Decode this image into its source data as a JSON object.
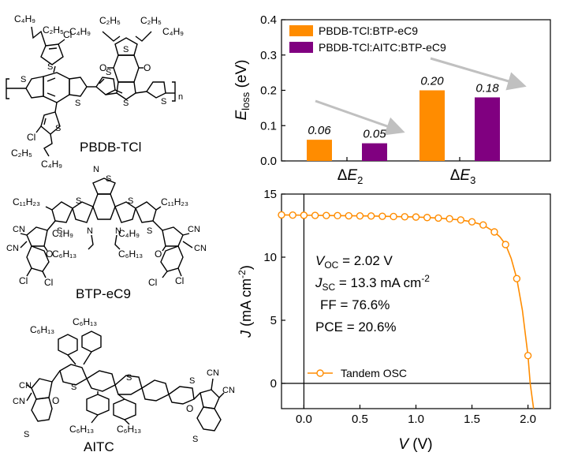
{
  "molecules": {
    "pbdb_label": "PBDB-TCl",
    "btp_label": "BTP-eC9",
    "aitc_label": "AITC",
    "subst": {
      "c4h9": "C₄H₉",
      "c2h5": "C₂H₅",
      "c11h23": "C₁₁H₂₃",
      "c6h13": "C₆H₁₃",
      "cl": "Cl",
      "cn": "CN",
      "s": "S",
      "o": "O",
      "n": "N",
      "n_rep": "n"
    }
  },
  "colors": {
    "orange": "#ff8c00",
    "purple": "#800080",
    "axis": "#000000",
    "arrow": "#c0c0c0"
  },
  "chart_data": [
    {
      "type": "bar",
      "title": "",
      "xlabel": "",
      "ylabel_main": "E",
      "ylabel_sub": "loss",
      "ylabel_unit": " (eV)",
      "categories": [
        {
          "main": "ΔE",
          "sub": "2"
        },
        {
          "main": "ΔE",
          "sub": "3"
        }
      ],
      "series": [
        {
          "name": "PBDB-TCl:BTP-eC9",
          "values": [
            0.06,
            0.2
          ],
          "labels": [
            "0.06",
            "0.20"
          ],
          "color": "#ff8c00"
        },
        {
          "name": "PBDB-TCl:AITC:BTP-eC9",
          "values": [
            0.05,
            0.18
          ],
          "labels": [
            "0.05",
            "0.18"
          ],
          "color": "#800080"
        }
      ],
      "ylim": [
        0,
        0.4
      ],
      "yticks": [
        0.0,
        0.1,
        0.2,
        0.3,
        0.4
      ],
      "ytick_labels": [
        "0.0",
        "0.1",
        "0.2",
        "0.3",
        "0.4"
      ],
      "legend": "top-left",
      "annotations": [
        "trend arrow over ΔE2",
        "trend arrow over ΔE3"
      ]
    },
    {
      "type": "line",
      "title": "",
      "xlabel_main": "V",
      "xlabel_unit": " (V)",
      "ylabel_main": "J",
      "ylabel_unit": " (mA cm",
      "ylabel_sup": "-2",
      "ylabel_close": ")",
      "xlim": [
        -0.2,
        2.2
      ],
      "ylim": [
        -2,
        15
      ],
      "xticks": [
        0.0,
        0.5,
        1.0,
        1.5,
        2.0
      ],
      "xtick_labels": [
        "0.0",
        "0.5",
        "1.0",
        "1.5",
        "2.0"
      ],
      "yticks": [
        0,
        5,
        10,
        15
      ],
      "ytick_labels": [
        "0",
        "5",
        "10",
        "15"
      ],
      "series": [
        {
          "name": "Tandem OSC",
          "color": "#ff8c00",
          "x": [
            -0.2,
            -0.1,
            0.0,
            0.1,
            0.2,
            0.3,
            0.4,
            0.5,
            0.6,
            0.7,
            0.8,
            0.9,
            1.0,
            1.1,
            1.2,
            1.3,
            1.4,
            1.5,
            1.6,
            1.7,
            1.8,
            1.9,
            2.0
          ],
          "y": [
            13.35,
            13.33,
            13.32,
            13.31,
            13.3,
            13.29,
            13.28,
            13.27,
            13.26,
            13.24,
            13.22,
            13.2,
            13.18,
            13.14,
            13.1,
            13.04,
            12.95,
            12.8,
            12.55,
            12.0,
            11.0,
            8.3,
            2.2
          ],
          "curve_x": [
            -0.2,
            0.2,
            0.6,
            1.0,
            1.2,
            1.4,
            1.5,
            1.6,
            1.7,
            1.75,
            1.8,
            1.85,
            1.9,
            1.95,
            2.0,
            2.02,
            2.05
          ],
          "curve_y": [
            13.35,
            13.3,
            13.26,
            13.18,
            13.1,
            12.95,
            12.8,
            12.55,
            12.0,
            11.6,
            11.0,
            9.9,
            8.3,
            5.8,
            2.2,
            0.0,
            -2.0
          ]
        }
      ],
      "legend": "bottom-left",
      "annotations": [
        {
          "main": "V",
          "sub": "OC",
          "text": " = 2.02 V"
        },
        {
          "main": "J",
          "sub": "SC",
          "text": "  = 13.3 mA cm",
          "sup": "-2"
        },
        {
          "main": "FF",
          "sub": "",
          "text": " = 76.6%"
        },
        {
          "main": "PCE",
          "sub": "",
          "text": " = 20.6%"
        }
      ]
    }
  ]
}
